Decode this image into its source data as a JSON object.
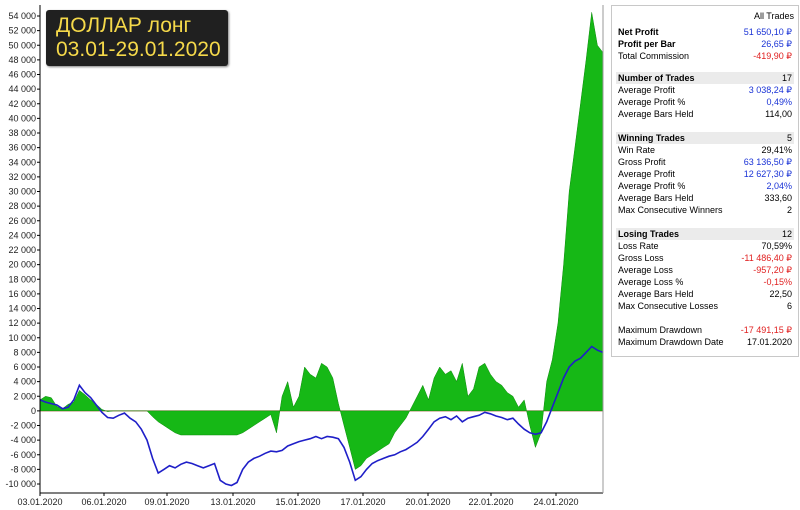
{
  "title": {
    "line1": "ДОЛЛАР лонг",
    "line2": "03.01-29.01.2020"
  },
  "colors": {
    "equity_line": "#1f1fc8",
    "profit_fill": "#16b816",
    "zero_line": "#e06060",
    "axis": "#000000"
  },
  "chart_data": {
    "type": "area",
    "y_ticks": [
      "54 000",
      "52 000",
      "50 000",
      "48 000",
      "46 000",
      "44 000",
      "42 000",
      "40 000",
      "38 000",
      "36 000",
      "34 000",
      "32 000",
      "30 000",
      "28 000",
      "26 000",
      "24 000",
      "22 000",
      "20 000",
      "18 000",
      "16 000",
      "14 000",
      "12 000",
      "10 000",
      "8 000",
      "6 000",
      "4 000",
      "2 000",
      "0",
      "-2 000",
      "-4 000",
      "-6 000",
      "-8 000",
      "-10 000"
    ],
    "x_ticks": [
      "03.01.2020",
      "06.01.2020",
      "09.01.2020",
      "13.01.2020",
      "15.01.2020",
      "17.01.2020",
      "20.01.2020",
      "22.01.2020",
      "24.01.2020"
    ],
    "ylim": [
      -11000,
      55000
    ],
    "x_range": [
      0,
      100
    ],
    "series": [
      {
        "x": [
          0,
          1,
          2,
          3,
          4,
          5,
          6,
          7,
          8,
          9,
          10,
          11,
          12,
          13,
          14,
          15,
          16,
          17,
          18,
          19,
          20,
          21,
          22,
          23,
          24,
          25,
          26,
          27,
          28,
          29,
          30,
          31,
          32,
          33,
          34,
          35,
          36,
          37,
          38,
          39,
          40,
          41,
          42,
          43,
          44,
          45,
          46,
          47,
          48,
          49,
          50,
          51,
          52,
          53,
          54,
          55,
          56,
          57,
          58,
          59,
          60,
          61,
          62,
          63,
          64,
          65,
          66,
          67,
          68,
          69,
          70,
          71,
          72,
          73,
          74,
          75,
          76,
          77,
          78,
          79,
          80,
          81,
          82,
          83,
          84,
          85,
          86,
          87,
          88,
          89,
          90,
          91,
          92,
          93,
          94,
          95,
          96,
          97,
          98,
          99,
          100
        ],
        "values": [
          1500,
          2000,
          1800,
          600,
          300,
          900,
          1200,
          2800,
          2200,
          1500,
          900,
          200,
          -100,
          0,
          0,
          0,
          0,
          0,
          0,
          0,
          -800,
          -1500,
          -2000,
          -2500,
          -3000,
          -3300,
          -3300,
          -3300,
          -3300,
          -3300,
          -3300,
          -3300,
          -3300,
          -3300,
          -3300,
          -3300,
          -3000,
          -2500,
          -2000,
          -1500,
          -1000,
          -500,
          -3000,
          2000,
          4000,
          500,
          2000,
          6000,
          5000,
          4500,
          6500,
          6000,
          4500,
          1000,
          -2000,
          -5000,
          -8000,
          -7500,
          -6500,
          -6000,
          -5500,
          -5000,
          -4500,
          -3000,
          -2000,
          -1000,
          500,
          2000,
          3500,
          1500,
          4500,
          6000,
          5000,
          5500,
          4000,
          6500,
          2000,
          3000,
          6000,
          6500,
          5000,
          4000,
          3500,
          2500,
          2000,
          500,
          1500,
          -2000,
          -5000,
          -3000,
          4000,
          7000,
          12000,
          20000,
          30000,
          36000,
          42000,
          48000,
          54500,
          50000,
          49000
        ],
        "x_key": "time"
      },
      {
        "x": [
          0,
          1,
          2,
          3,
          4,
          5,
          6,
          7,
          8,
          9,
          10,
          11,
          12,
          13,
          14,
          15,
          16,
          17,
          18,
          19,
          20,
          21,
          22,
          23,
          24,
          25,
          26,
          27,
          28,
          29,
          30,
          31,
          32,
          33,
          34,
          35,
          36,
          37,
          38,
          39,
          40,
          41,
          42,
          43,
          44,
          45,
          46,
          47,
          48,
          49,
          50,
          51,
          52,
          53,
          54,
          55,
          56,
          57,
          58,
          59,
          60,
          61,
          62,
          63,
          64,
          65,
          66,
          67,
          68,
          69,
          70,
          71,
          72,
          73,
          74,
          75,
          76,
          77,
          78,
          79,
          80,
          81,
          82,
          83,
          84,
          85,
          86,
          87,
          88,
          89,
          90,
          91,
          92,
          93,
          94,
          95,
          96,
          97,
          98,
          99,
          100
        ],
        "values": [
          1500,
          1200,
          1000,
          800,
          300,
          500,
          1500,
          3500,
          2500,
          1800,
          800,
          -200,
          -900,
          -1000,
          -600,
          -300,
          -1000,
          -1500,
          -2500,
          -4000,
          -6500,
          -8500,
          -8000,
          -7500,
          -7800,
          -7300,
          -7000,
          -7200,
          -7500,
          -7800,
          -7500,
          -7200,
          -9500,
          -10000,
          -10200,
          -9800,
          -8000,
          -7000,
          -6500,
          -6200,
          -5800,
          -5500,
          -5600,
          -5400,
          -4800,
          -4500,
          -4200,
          -4000,
          -3800,
          -3500,
          -3800,
          -3500,
          -3600,
          -3800,
          -5000,
          -7000,
          -9500,
          -9000,
          -8000,
          -7200,
          -6800,
          -6500,
          -6200,
          -6000,
          -5600,
          -5300,
          -4800,
          -4300,
          -3500,
          -2500,
          -1500,
          -1000,
          -800,
          -1200,
          -700,
          -1500,
          -1000,
          -800,
          -600,
          -200,
          -400,
          -700,
          -900,
          -1200,
          -1000,
          -1800,
          -2500,
          -3000,
          -3200,
          -3000,
          -1500,
          500,
          2500,
          4500,
          6000,
          6800,
          7200,
          8000,
          8800,
          8300,
          8000
        ],
        "x_key": "time"
      }
    ]
  },
  "stats": {
    "header": "All Trades",
    "net_profit_label": "Net Profit",
    "net_profit_value": "51 650,10 ₽",
    "profit_per_bar_label": "Profit per Bar",
    "profit_per_bar_value": "26,65 ₽",
    "total_commission_label": "Total Commission",
    "total_commission_value": "-419,90 ₽",
    "number_of_trades_label": "Number of Trades",
    "number_of_trades_value": "17",
    "avg_profit_label": "Average Profit",
    "avg_profit_value": "3 038,24 ₽",
    "avg_profit_pct_label": "Average Profit %",
    "avg_profit_pct_value": "0,49%",
    "avg_bars_held_label": "Average Bars Held",
    "avg_bars_held_value": "114,00",
    "winning_trades_label": "Winning Trades",
    "winning_trades_value": "5",
    "win_rate_label": "Win Rate",
    "win_rate_value": "29,41%",
    "gross_profit_label": "Gross Profit",
    "gross_profit_value": "63 136,50 ₽",
    "win_avg_profit_label": "Average Profit",
    "win_avg_profit_value": "12 627,30 ₽",
    "win_avg_profit_pct_label": "Average Profit %",
    "win_avg_profit_pct_value": "2,04%",
    "win_avg_bars_label": "Average Bars Held",
    "win_avg_bars_value": "333,60",
    "max_consec_winners_label": "Max Consecutive Winners",
    "max_consec_winners_value": "2",
    "losing_trades_label": "Losing Trades",
    "losing_trades_value": "12",
    "loss_rate_label": "Loss Rate",
    "loss_rate_value": "70,59%",
    "gross_loss_label": "Gross Loss",
    "gross_loss_value": "-11 486,40 ₽",
    "avg_loss_label": "Average Loss",
    "avg_loss_value": "-957,20 ₽",
    "avg_loss_pct_label": "Average Loss %",
    "avg_loss_pct_value": "-0,15%",
    "loss_avg_bars_label": "Average Bars Held",
    "loss_avg_bars_value": "22,50",
    "max_consec_losses_label": "Max Consecutive Losses",
    "max_consec_losses_value": "6",
    "max_drawdown_label": "Maximum Drawdown",
    "max_drawdown_value": "-17 491,15 ₽",
    "max_drawdown_date_label": "Maximum Drawdown Date",
    "max_drawdown_date_value": "17.01.2020"
  }
}
